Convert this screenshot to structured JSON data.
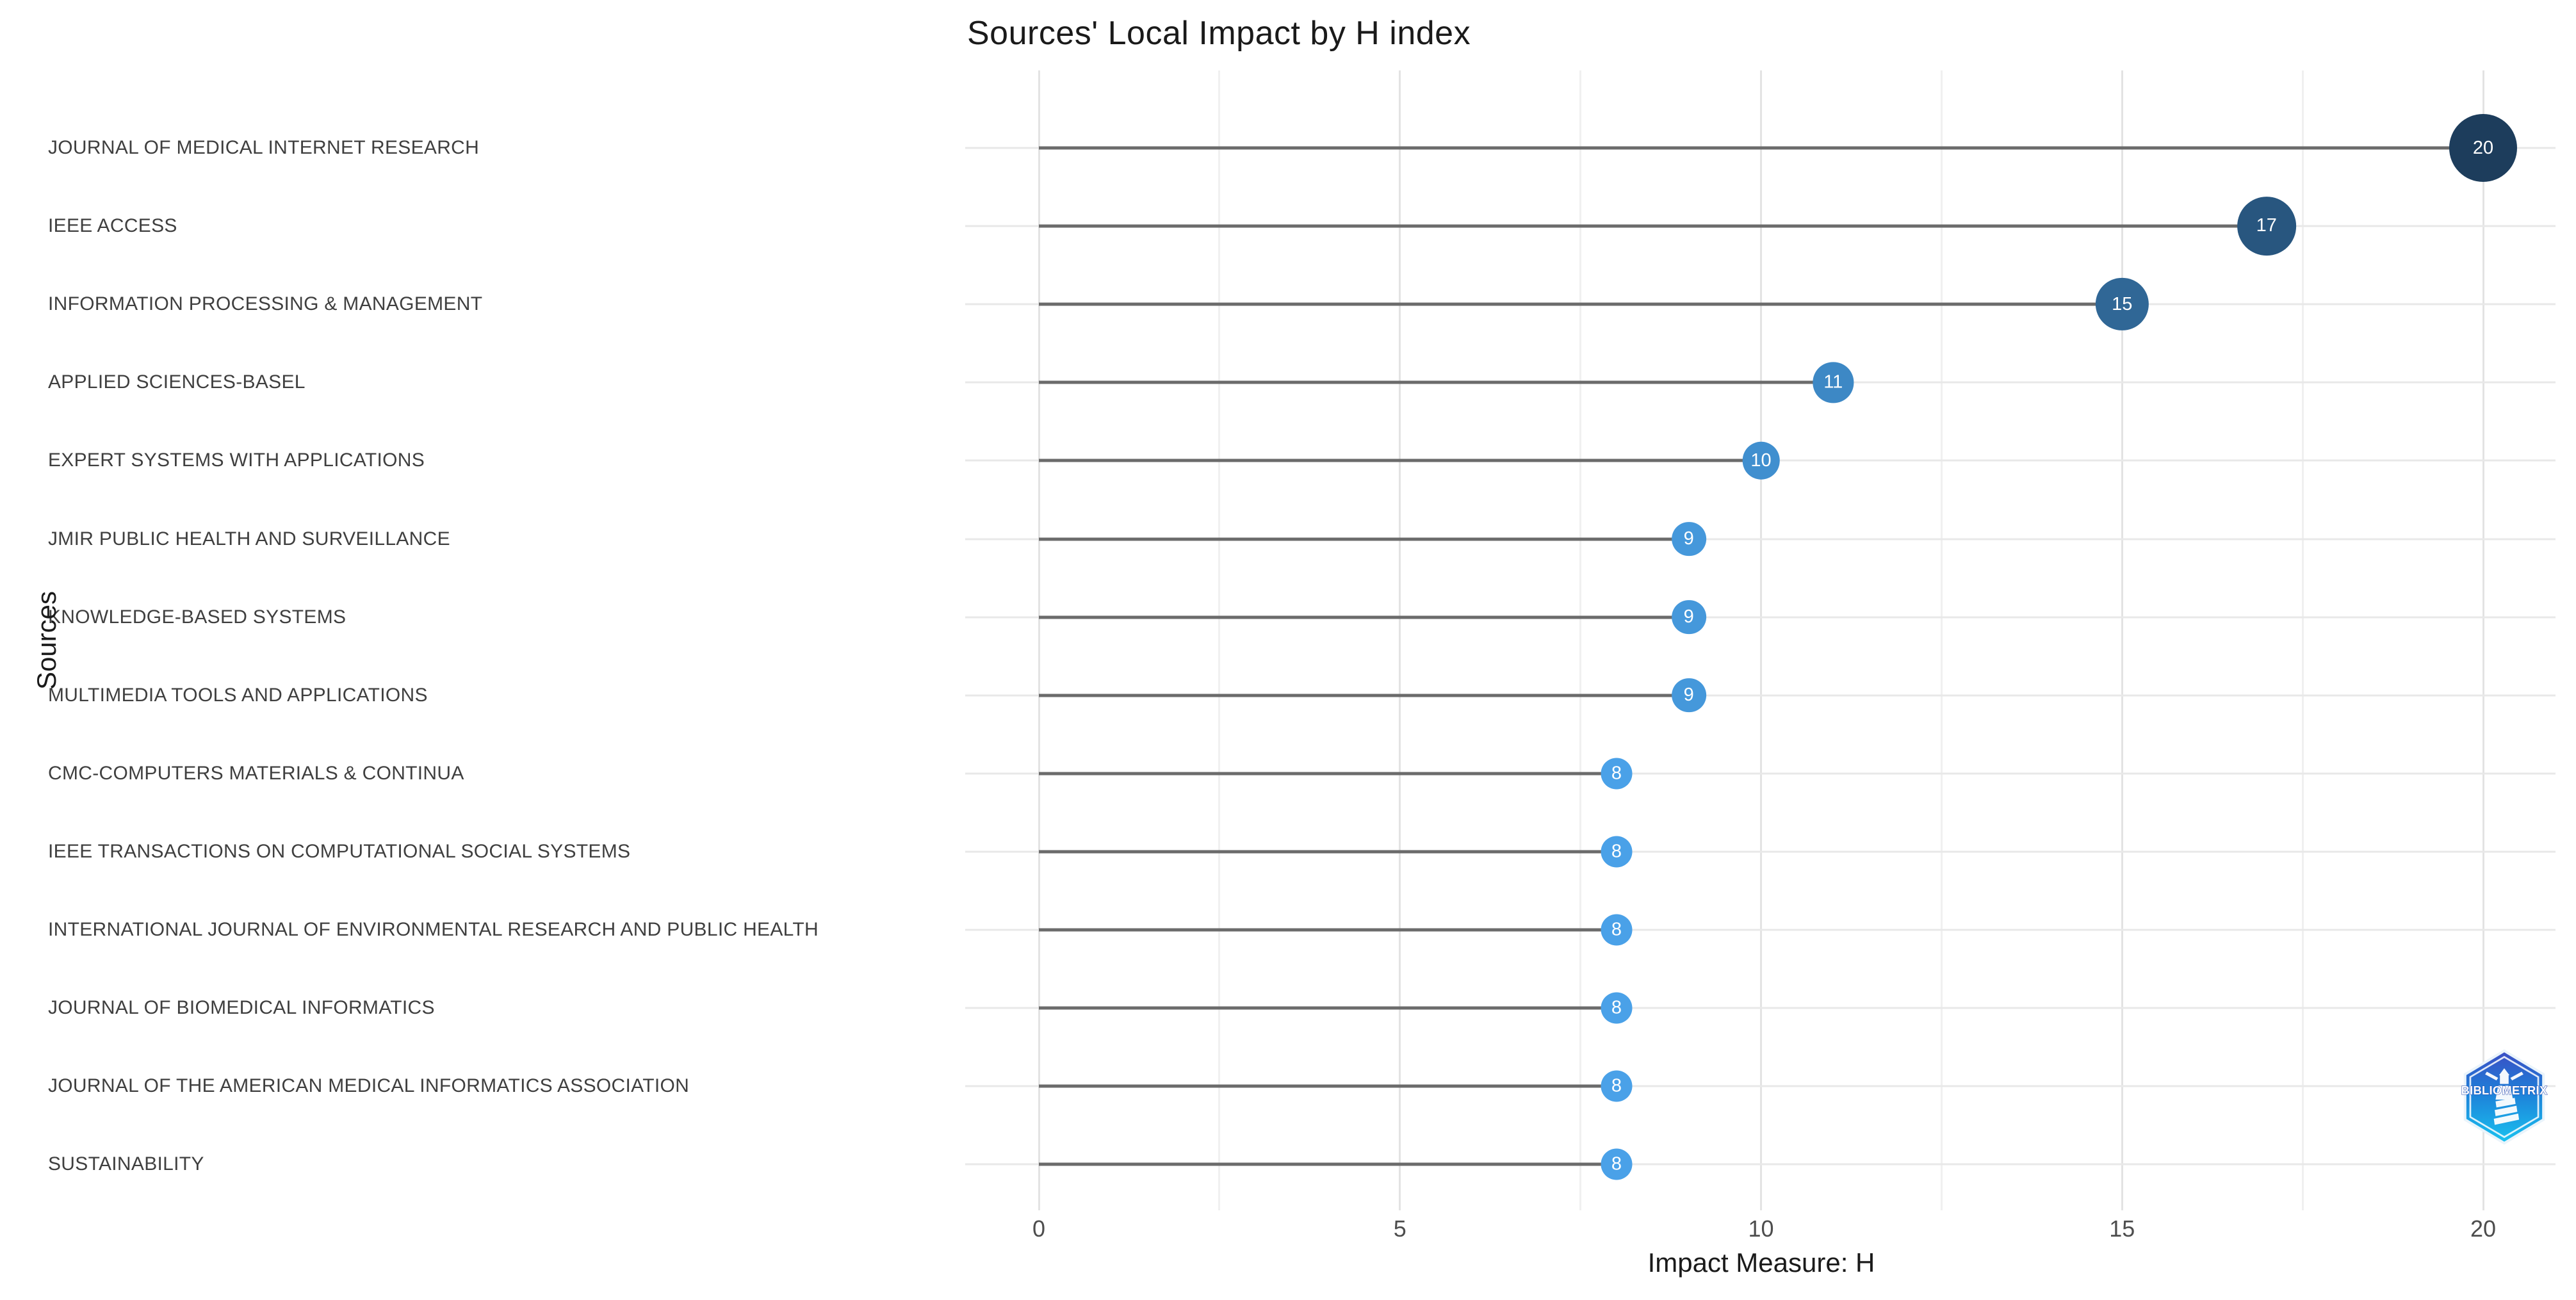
{
  "chart_data": {
    "type": "scatter",
    "variant": "lollipop",
    "title": "Sources' Local Impact by H index",
    "xlabel": "Impact Measure: H",
    "ylabel": "Sources",
    "xlim": [
      0,
      20
    ],
    "x_ticks": [
      0,
      5,
      10,
      15,
      20
    ],
    "x_minor_step": 2.5,
    "grid": true,
    "legend": "none",
    "rows": [
      {
        "label": "JOURNAL OF MEDICAL INTERNET RESEARCH",
        "value": 20,
        "color": "#1d3d5c"
      },
      {
        "label": "IEEE ACCESS",
        "value": 17,
        "color": "#28567f"
      },
      {
        "label": "INFORMATION PROCESSING & MANAGEMENT",
        "value": 15,
        "color": "#306796"
      },
      {
        "label": "APPLIED SCIENCES-BASEL",
        "value": 11,
        "color": "#3d88c5"
      },
      {
        "label": "EXPERT SYSTEMS WITH APPLICATIONS",
        "value": 10,
        "color": "#408fcf"
      },
      {
        "label": "JMIR PUBLIC HEALTH AND SURVEILLANCE",
        "value": 9,
        "color": "#4598db"
      },
      {
        "label": "KNOWLEDGE-BASED SYSTEMS",
        "value": 9,
        "color": "#4598db"
      },
      {
        "label": "MULTIMEDIA TOOLS AND APPLICATIONS",
        "value": 9,
        "color": "#4598db"
      },
      {
        "label": "CMC-COMPUTERS MATERIALS & CONTINUA",
        "value": 8,
        "color": "#4aa1e8"
      },
      {
        "label": "IEEE TRANSACTIONS ON COMPUTATIONAL SOCIAL SYSTEMS",
        "value": 8,
        "color": "#4aa1e8"
      },
      {
        "label": "INTERNATIONAL JOURNAL OF ENVIRONMENTAL RESEARCH AND PUBLIC HEALTH",
        "value": 8,
        "color": "#4aa1e8"
      },
      {
        "label": "JOURNAL OF BIOMEDICAL INFORMATICS",
        "value": 8,
        "color": "#4aa1e8"
      },
      {
        "label": "JOURNAL OF THE AMERICAN MEDICAL INFORMATICS ASSOCIATION",
        "value": 8,
        "color": "#4aa1e8"
      },
      {
        "label": "SUSTAINABILITY",
        "value": 8,
        "color": "#4aa1e8"
      }
    ],
    "style": {
      "stem_color": "#6b6b6b",
      "grid_major_color": "#e3e3e3",
      "grid_minor_color": "#f0f0f0",
      "row_grid_color": "#e8e8e8",
      "dot_text_color": "#ffffff",
      "label_color": "#3f3f3f",
      "tick_color": "#4d4d4d"
    }
  },
  "branding": {
    "logo_name": "bibliometrix-logo",
    "logo_text": "BIBLIOMETRIX",
    "logo_colors": {
      "top": "#3b4ec4",
      "mid": "#1e7fd8",
      "bottom": "#19c3f0"
    }
  }
}
